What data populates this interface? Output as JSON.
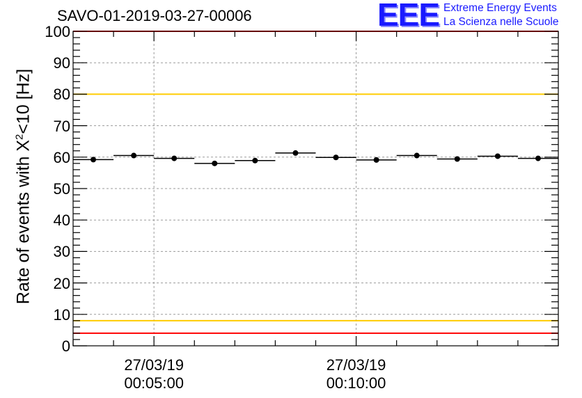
{
  "chart_data": {
    "type": "scatter",
    "title": "SAVO-01-2019-03-27-00006",
    "ylabel": "Rate of events with Χ²<10 [Hz]",
    "ylabel_parts": {
      "main": "Rate of events with Χ",
      "sup": "2",
      "tail": "<10 [Hz]"
    },
    "xlabel": "",
    "ylim": [
      0,
      100
    ],
    "yticks": [
      "0",
      "10",
      "20",
      "30",
      "40",
      "50",
      "60",
      "70",
      "80",
      "90",
      "100"
    ],
    "xlim": [
      "00:03:00",
      "00:15:00"
    ],
    "xticks": [
      {
        "time": "00:05:00",
        "date": "27/03/19",
        "clock": "00:05:00"
      },
      {
        "time": "00:10:00",
        "date": "27/03/19",
        "clock": "00:10:00"
      }
    ],
    "grid": true,
    "series": [
      {
        "x_start": [
          "00:03:00",
          "00:04:00",
          "00:05:00",
          "00:06:00",
          "00:07:00",
          "00:08:00",
          "00:09:00",
          "00:10:00",
          "00:11:00",
          "00:12:00",
          "00:13:00",
          "00:14:00"
        ],
        "x_end": [
          "00:04:00",
          "00:05:00",
          "00:06:00",
          "00:07:00",
          "00:08:00",
          "00:09:00",
          "00:10:00",
          "00:11:00",
          "00:12:00",
          "00:13:00",
          "00:14:00",
          "00:15:00"
        ],
        "values": [
          59.2,
          60.5,
          59.6,
          58.0,
          58.9,
          61.3,
          59.9,
          59.1,
          60.5,
          59.4,
          60.3,
          59.6
        ],
        "errors": [
          0.6,
          0.6,
          0.6,
          0.6,
          0.6,
          0.6,
          0.6,
          0.6,
          0.6,
          0.6,
          0.6,
          0.6
        ]
      }
    ],
    "reference_lines": [
      {
        "y": 100,
        "color": "#ff0000"
      },
      {
        "y": 80,
        "color": "#ffcc00"
      },
      {
        "y": 8,
        "color": "#ffcc00"
      },
      {
        "y": 4,
        "color": "#ff0000"
      }
    ]
  },
  "logo": {
    "mark": "EEE",
    "line1": "Extreme Energy Events",
    "line2": "La Scienza nelle Scuole",
    "color": "#1a1aff"
  }
}
